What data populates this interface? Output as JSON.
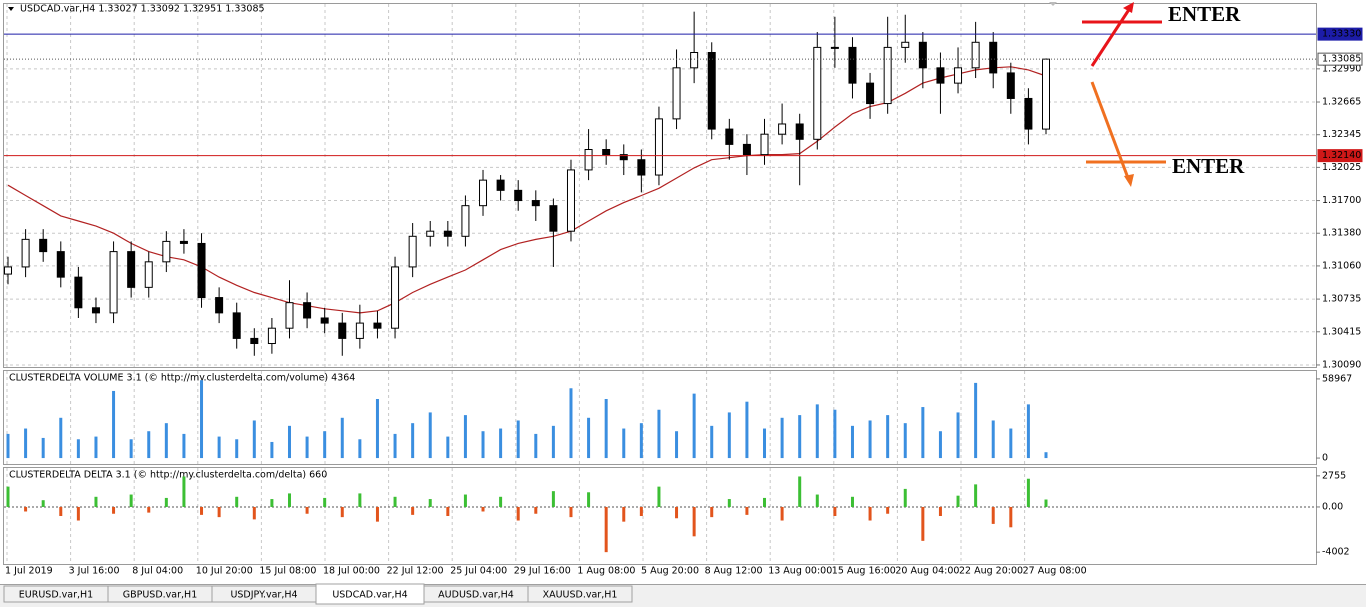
{
  "header": "USDCAD.var,H4  1.33027 1.33092 1.32951 1.33085",
  "chart_data": [
    {
      "type": "candlestick",
      "ylim": [
        1.3007,
        1.33625
      ],
      "yticks": [
        {
          "value": 1.3009,
          "label": "1.30090"
        },
        {
          "value": 1.30415,
          "label": "1.30415"
        },
        {
          "value": 1.30735,
          "label": "1.30735"
        },
        {
          "value": 1.3106,
          "label": "1.31060"
        },
        {
          "value": 1.3138,
          "label": "1.31380"
        },
        {
          "value": 1.317,
          "label": "1.31700"
        },
        {
          "value": 1.32025,
          "label": "1.32025"
        },
        {
          "value": 1.32345,
          "label": "1.32345"
        },
        {
          "value": 1.32665,
          "label": "1.32665"
        },
        {
          "value": 1.3299,
          "label": "1.32990"
        }
      ],
      "grid": true,
      "xlabels": [
        "1 Jul 2019",
        "3 Jul 16:00",
        "8 Jul 04:00",
        "10 Jul 20:00",
        "15 Jul 08:00",
        "18 Jul 00:00",
        "22 Jul 12:00",
        "25 Jul 04:00",
        "29 Jul 16:00",
        "1 Aug 08:00",
        "5 Aug 20:00",
        "8 Aug 12:00",
        "13 Aug 00:00",
        "15 Aug 16:00",
        "20 Aug 04:00",
        "22 Aug 20:00",
        "27 Aug 08:00"
      ],
      "open": [
        1.3098,
        1.3105,
        1.3132,
        1.312,
        1.3095,
        1.3065,
        1.306,
        1.312,
        1.3085,
        1.311,
        1.313,
        1.3128,
        1.3075,
        1.306,
        1.3035,
        1.303,
        1.3045,
        1.307,
        1.3055,
        1.305,
        1.3035,
        1.305,
        1.3045,
        1.3105,
        1.3135,
        1.314,
        1.3135,
        1.3165,
        1.319,
        1.318,
        1.317,
        1.3165,
        1.314,
        1.32,
        1.322,
        1.3215,
        1.321,
        1.3195,
        1.325,
        1.33,
        1.3315,
        1.324,
        1.3225,
        1.3215,
        1.3235,
        1.3245,
        1.323,
        1.332,
        1.332,
        1.3285,
        1.3265,
        1.332,
        1.3325,
        1.33,
        1.3285,
        1.33,
        1.3325,
        1.3295,
        1.327,
        1.324
      ],
      "high": [
        1.3115,
        1.3142,
        1.3142,
        1.313,
        1.3105,
        1.3075,
        1.313,
        1.313,
        1.312,
        1.314,
        1.3142,
        1.3138,
        1.3085,
        1.307,
        1.3045,
        1.3055,
        1.3092,
        1.308,
        1.3065,
        1.306,
        1.3068,
        1.3062,
        1.3115,
        1.3148,
        1.315,
        1.315,
        1.3175,
        1.32,
        1.3195,
        1.319,
        1.318,
        1.3172,
        1.321,
        1.324,
        1.323,
        1.3225,
        1.322,
        1.3262,
        1.3318,
        1.3355,
        1.3325,
        1.325,
        1.3235,
        1.325,
        1.3265,
        1.3255,
        1.3335,
        1.335,
        1.333,
        1.3295,
        1.335,
        1.3352,
        1.3335,
        1.3315,
        1.332,
        1.3345,
        1.3335,
        1.3305,
        1.328,
        1.33092
      ],
      "low": [
        1.3088,
        1.3095,
        1.311,
        1.3085,
        1.3055,
        1.305,
        1.305,
        1.3075,
        1.3075,
        1.31,
        1.3118,
        1.3065,
        1.305,
        1.3025,
        1.3018,
        1.302,
        1.3035,
        1.3045,
        1.304,
        1.3018,
        1.3025,
        1.3035,
        1.3035,
        1.3095,
        1.3125,
        1.3125,
        1.3125,
        1.3155,
        1.317,
        1.316,
        1.315,
        1.3105,
        1.313,
        1.319,
        1.3205,
        1.3195,
        1.3178,
        1.3185,
        1.324,
        1.3285,
        1.323,
        1.321,
        1.3195,
        1.3205,
        1.3225,
        1.3185,
        1.322,
        1.33,
        1.327,
        1.325,
        1.3255,
        1.3305,
        1.328,
        1.3255,
        1.3275,
        1.329,
        1.328,
        1.3255,
        1.3225,
        1.3235
      ],
      "close": [
        1.3105,
        1.3132,
        1.312,
        1.3095,
        1.3065,
        1.306,
        1.312,
        1.3085,
        1.311,
        1.313,
        1.3128,
        1.3075,
        1.306,
        1.3035,
        1.303,
        1.3045,
        1.307,
        1.3055,
        1.305,
        1.3035,
        1.305,
        1.3045,
        1.3105,
        1.3135,
        1.314,
        1.3135,
        1.3165,
        1.319,
        1.318,
        1.317,
        1.3165,
        1.314,
        1.32,
        1.322,
        1.3215,
        1.321,
        1.3195,
        1.325,
        1.33,
        1.3315,
        1.324,
        1.3225,
        1.3215,
        1.3235,
        1.3245,
        1.323,
        1.332,
        1.332,
        1.3285,
        1.3265,
        1.332,
        1.3325,
        1.33,
        1.3285,
        1.33,
        1.3325,
        1.3295,
        1.327,
        1.324,
        1.33085
      ],
      "ma": {
        "color": "#b22222",
        "values": [
          1.3185,
          1.3175,
          1.3165,
          1.3155,
          1.315,
          1.3145,
          1.3138,
          1.3128,
          1.312,
          1.3115,
          1.3112,
          1.3105,
          1.3095,
          1.3087,
          1.308,
          1.3075,
          1.307,
          1.3067,
          1.3064,
          1.3062,
          1.306,
          1.3062,
          1.307,
          1.308,
          1.3088,
          1.3095,
          1.3102,
          1.3112,
          1.3122,
          1.3128,
          1.3132,
          1.3135,
          1.314,
          1.315,
          1.316,
          1.3168,
          1.3175,
          1.3182,
          1.3192,
          1.3202,
          1.321,
          1.3212,
          1.3214,
          1.3215,
          1.3215,
          1.3216,
          1.3228,
          1.3242,
          1.3255,
          1.3262,
          1.3266,
          1.3275,
          1.3285,
          1.329,
          1.3294,
          1.3298,
          1.33,
          1.3301,
          1.3298,
          1.3292
        ]
      },
      "levels": [
        {
          "value": 1.3333,
          "label": "1.33330",
          "color": "#1c1ca8",
          "filled": true
        },
        {
          "value": 1.3214,
          "label": "1.32140",
          "color": "#d01818",
          "filled": true
        },
        {
          "value": 1.33085,
          "label": "1.33085",
          "color": "#555555",
          "filled": false
        }
      ],
      "annotations": [
        {
          "text": "ENTER",
          "color": "#e8141a"
        },
        {
          "text": "ENTER",
          "color": "#f07020"
        }
      ]
    },
    {
      "type": "bar",
      "title": "CLUSTERDELTA VOLUME 3.1 (© http://my.clusterdelta.com/volume) 4364",
      "color": "#3a8ee0",
      "ylim": [
        -4420,
        64860
      ],
      "yticks": [
        0,
        58967
      ],
      "values": [
        18000,
        22000,
        15000,
        30000,
        14000,
        16000,
        50000,
        14000,
        20000,
        26000,
        18000,
        58000,
        16000,
        14000,
        28000,
        12000,
        24000,
        16000,
        20000,
        30000,
        14000,
        44000,
        18000,
        26000,
        34000,
        16000,
        32000,
        20000,
        22000,
        28000,
        18000,
        24000,
        52000,
        30000,
        44000,
        22000,
        26000,
        36000,
        20000,
        48000,
        24000,
        34000,
        42000,
        22000,
        30000,
        32000,
        40000,
        36000,
        24000,
        28000,
        32000,
        26000,
        38000,
        20000,
        34000,
        56000,
        28000,
        22000,
        40000,
        4364
      ]
    },
    {
      "type": "delta",
      "title": "CLUSTERDELTA DELTA 3.1 (© http://my.clusterdelta.com/delta) 660",
      "colors": {
        "positive": "#3cbf34",
        "negative": "#e2541c"
      },
      "ylim": [
        -5050,
        3450
      ],
      "yticks": [
        2755,
        {
          "value": 0,
          "label": "0.00"
        },
        -4002
      ],
      "values": [
        1800,
        -400,
        600,
        -800,
        -1200,
        900,
        -600,
        1100,
        -500,
        800,
        2700,
        -700,
        -900,
        900,
        -1100,
        700,
        1200,
        -600,
        800,
        -900,
        1200,
        -1300,
        900,
        -700,
        700,
        -800,
        1100,
        -400,
        900,
        -1200,
        -600,
        1400,
        -900,
        1300,
        -4000,
        -1300,
        -800,
        1800,
        -1000,
        -2600,
        -900,
        700,
        -700,
        800,
        -1200,
        2700,
        1100,
        -800,
        900,
        -1200,
        -600,
        1600,
        -3000,
        -800,
        1000,
        2000,
        -1500,
        -1800,
        2500,
        660
      ]
    }
  ],
  "tabs": [
    "EURUSD.var,H1",
    "GBPUSD.var,H1",
    "USDJPY.var,H4",
    "USDCAD.var,H4",
    "AUDUSD.var,H4",
    "XAUUSD.var,H1"
  ],
  "active_tab": 3
}
